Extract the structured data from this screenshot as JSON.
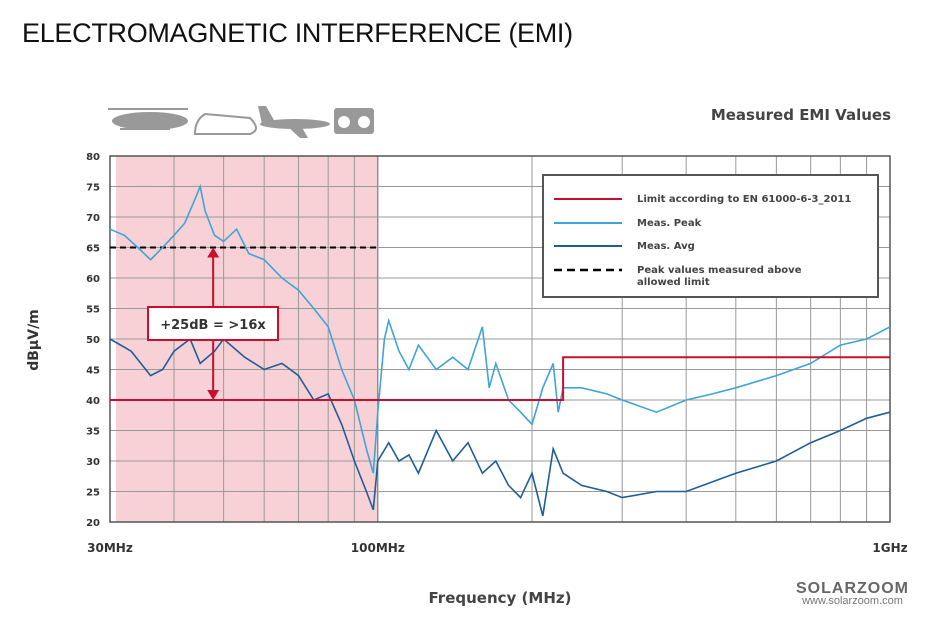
{
  "title": "ELECTROMAGNETIC INTERFERENCE (EMI)",
  "logo": {
    "name": "SOLARZOOM",
    "url": "www.solarzoom.com"
  },
  "icons": [
    "helicopter-icon",
    "train-icon",
    "airplane-icon",
    "radio-icon"
  ],
  "chart_data": {
    "type": "line",
    "title": "Measured EMI Values",
    "xlabel": "Frequency (MHz)",
    "ylabel": "dBµV/m",
    "xscale": "log",
    "xlim": [
      30,
      1000
    ],
    "ylim": [
      20,
      80
    ],
    "xticks": [
      {
        "v": 30,
        "label": "30MHz"
      },
      {
        "v": 100,
        "label": "100MHz"
      },
      {
        "v": 1000,
        "label": "1GHz"
      }
    ],
    "yticks": [
      20,
      25,
      30,
      35,
      40,
      45,
      50,
      55,
      60,
      65,
      70,
      75,
      80
    ],
    "grid": true,
    "legend_position": "top-right",
    "annotation": "+25dB = >16x",
    "shaded_region": [
      30,
      100
    ],
    "series": [
      {
        "name": "Limit according to EN 61000-6-3_2011",
        "color": "#c8102e",
        "style": "step",
        "x": [
          30,
          230,
          230,
          1000
        ],
        "y": [
          40,
          40,
          47,
          47
        ]
      },
      {
        "name": "Meas. Peak",
        "color": "#3fa4d8",
        "x": [
          30,
          32,
          34,
          36,
          38,
          40,
          42,
          44,
          45,
          46,
          48,
          50,
          53,
          56,
          60,
          65,
          70,
          75,
          80,
          85,
          90,
          95,
          98,
          100,
          103,
          105,
          110,
          115,
          120,
          130,
          140,
          150,
          160,
          165,
          170,
          180,
          190,
          200,
          210,
          220,
          225,
          230,
          250,
          280,
          300,
          350,
          400,
          450,
          500,
          600,
          700,
          800,
          900,
          1000
        ],
        "y": [
          68,
          67,
          65,
          63,
          65,
          67,
          69,
          73,
          75,
          71,
          67,
          66,
          68,
          64,
          63,
          60,
          58,
          55,
          52,
          45,
          40,
          32,
          28,
          38,
          50,
          53,
          48,
          45,
          49,
          45,
          47,
          45,
          52,
          42,
          46,
          40,
          38,
          36,
          42,
          46,
          38,
          42,
          42,
          41,
          40,
          38,
          40,
          41,
          42,
          44,
          46,
          49,
          50,
          52
        ]
      },
      {
        "name": "Meas. Avg",
        "color": "#1f5d99",
        "x": [
          30,
          33,
          36,
          38,
          40,
          43,
          45,
          48,
          50,
          55,
          60,
          65,
          70,
          75,
          80,
          85,
          90,
          95,
          98,
          100,
          105,
          110,
          115,
          120,
          130,
          140,
          150,
          160,
          170,
          180,
          190,
          200,
          210,
          220,
          230,
          250,
          280,
          300,
          350,
          400,
          500,
          600,
          700,
          800,
          900,
          1000
        ],
        "y": [
          50,
          48,
          44,
          45,
          48,
          50,
          46,
          48,
          50,
          47,
          45,
          46,
          44,
          40,
          41,
          36,
          30,
          25,
          22,
          30,
          33,
          30,
          31,
          28,
          35,
          30,
          33,
          28,
          30,
          26,
          24,
          28,
          21,
          32,
          28,
          26,
          25,
          24,
          25,
          25,
          28,
          30,
          33,
          35,
          37,
          38
        ]
      },
      {
        "name": "Peak values measured above allowed limit",
        "color": "#000000",
        "style": "dashed",
        "x": [
          30,
          100
        ],
        "y": [
          65,
          65
        ]
      }
    ]
  }
}
